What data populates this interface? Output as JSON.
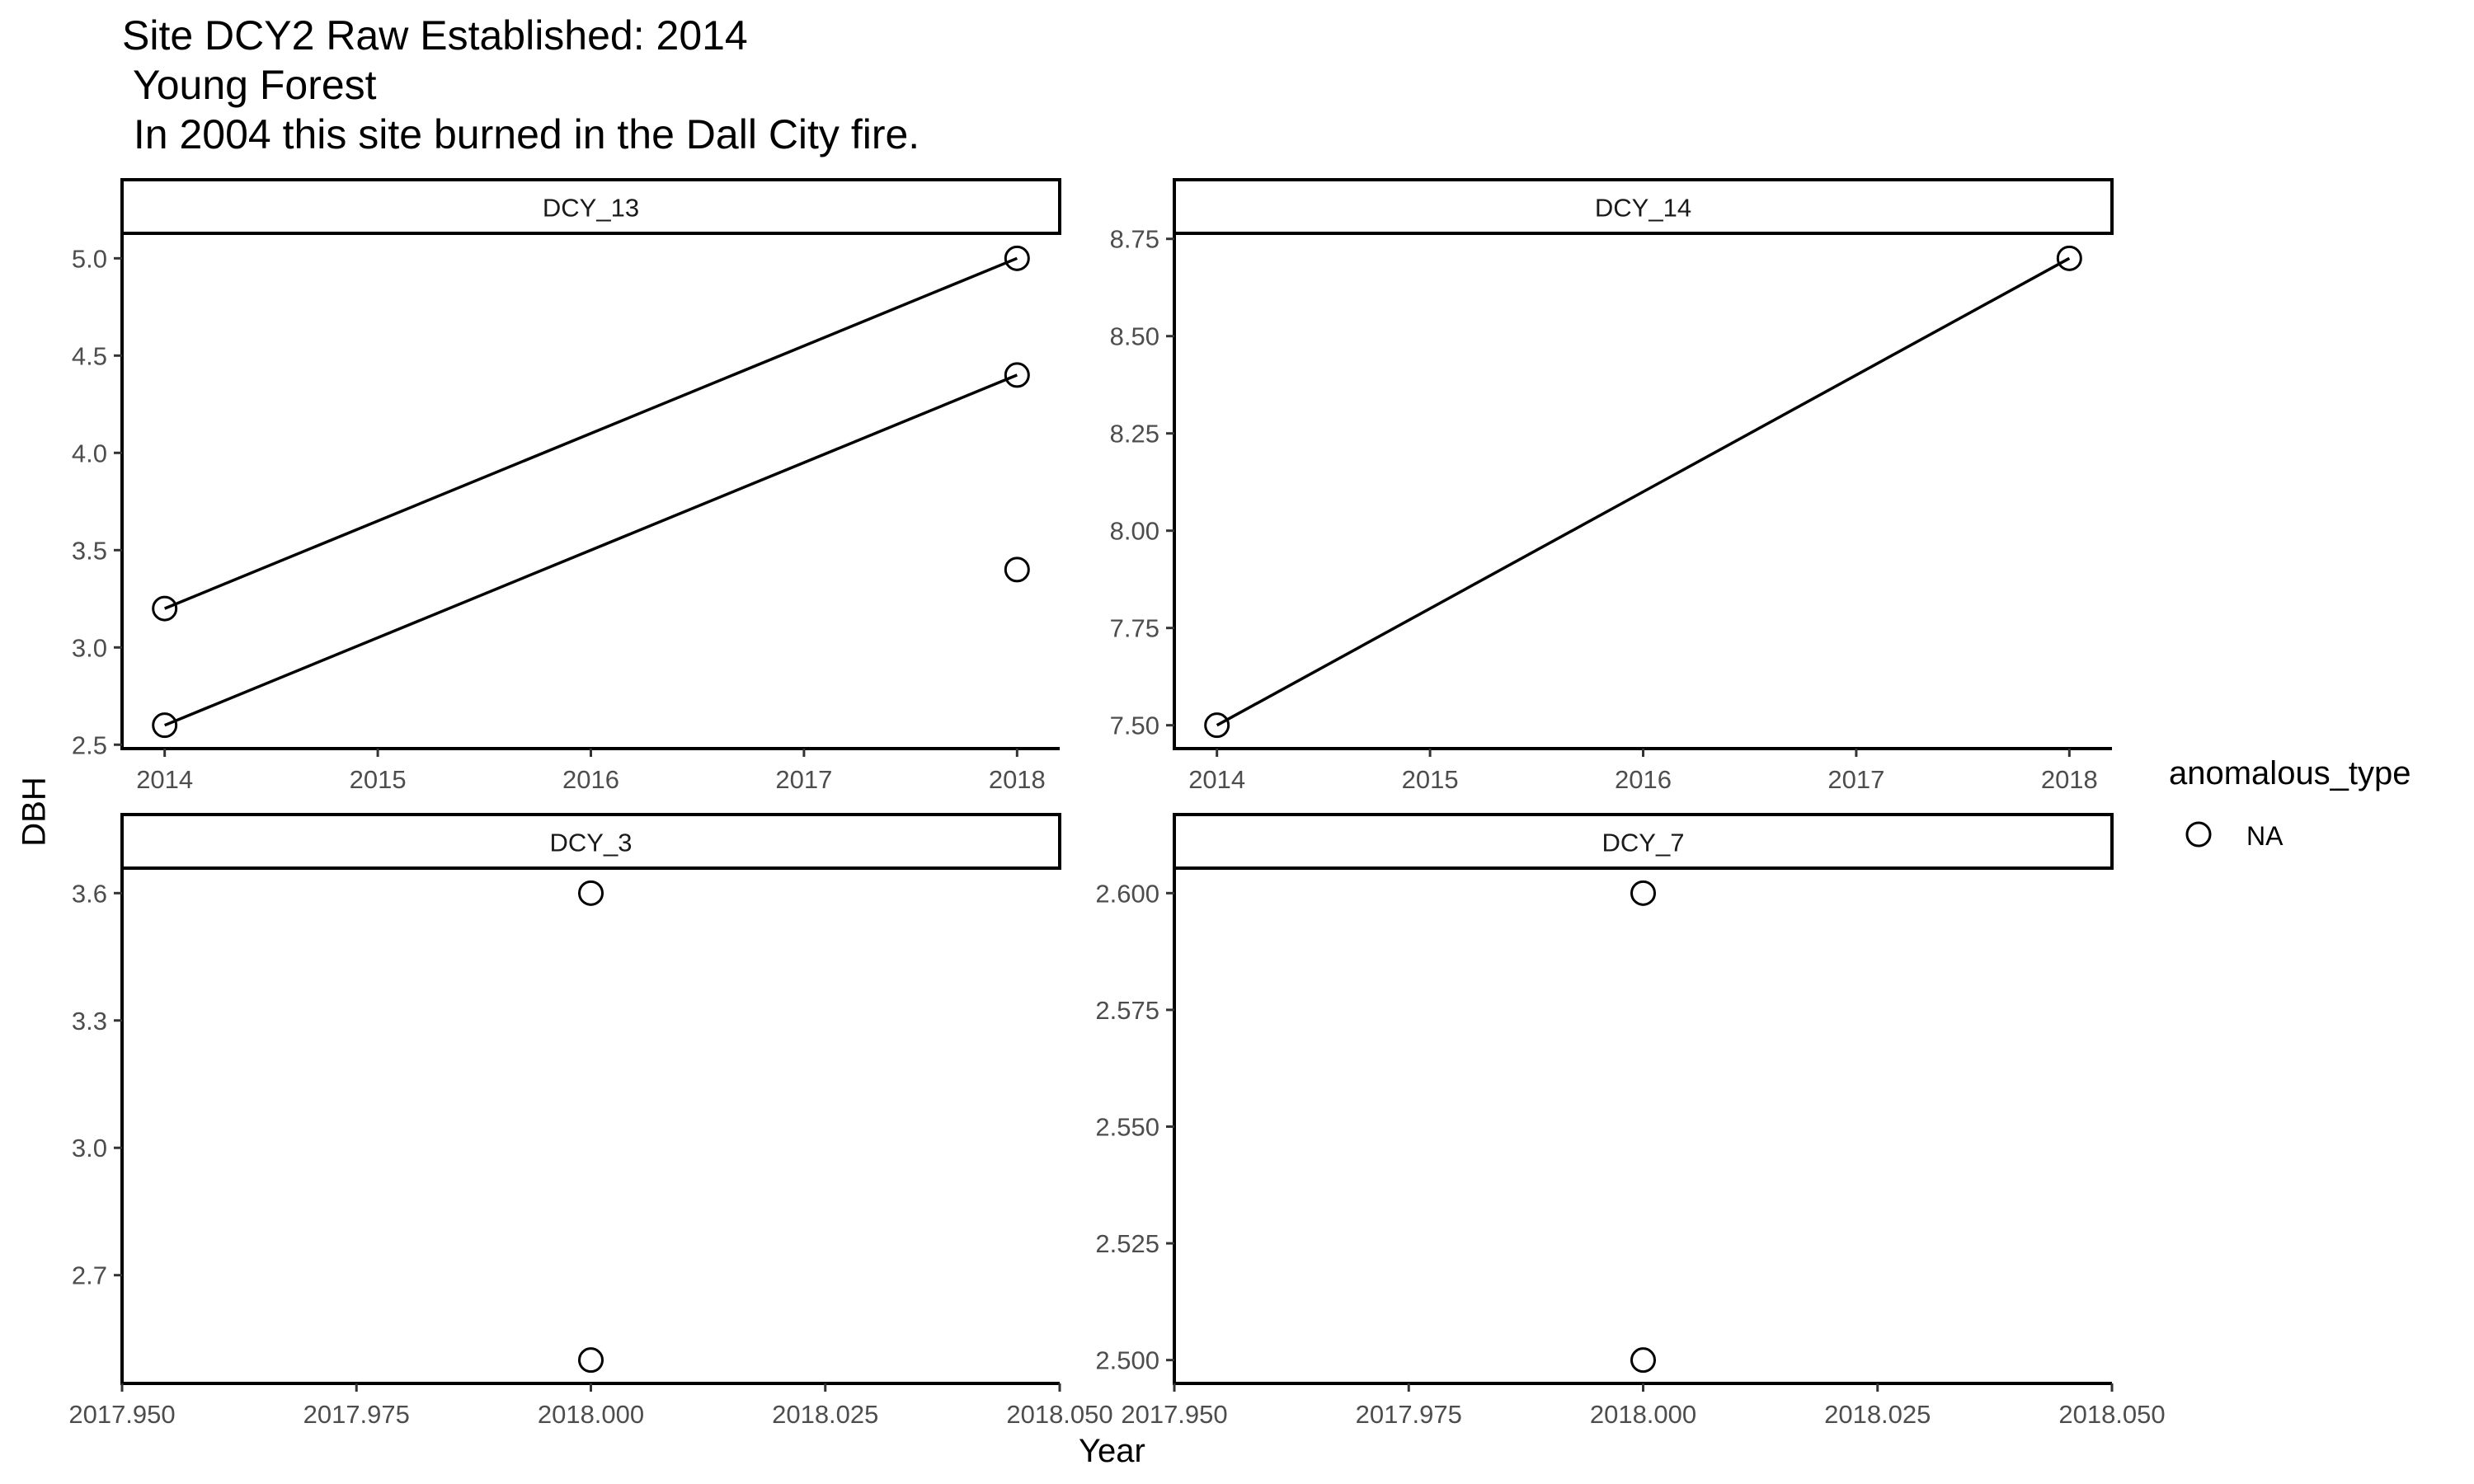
{
  "chart_data": {
    "type": "line",
    "title_lines": [
      "Site DCY2 Raw Established: 2014",
      " Young Forest",
      " In 2004 this site burned in the Dall City fire."
    ],
    "xlabel": "Year",
    "ylabel": "DBH",
    "legend": {
      "title": "anomalous_type",
      "entries": [
        "NA"
      ],
      "placement": "right",
      "marker": "open-circle"
    },
    "grid": false,
    "colors": {
      "marker": "#000000",
      "line": "#000000",
      "strip_fill": "#ffffff"
    },
    "panels": [
      {
        "strip": "DCY_13",
        "xlim": [
          2013.8,
          2018.2
        ],
        "ylim": [
          2.48,
          5.12
        ],
        "x_ticks": [
          2014,
          2015,
          2016,
          2017,
          2018
        ],
        "x_tick_labels": [
          "2014",
          "2015",
          "2016",
          "2017",
          "2018"
        ],
        "y_ticks": [
          2.5,
          3.0,
          3.5,
          4.0,
          4.5,
          5.0
        ],
        "y_tick_labels": [
          "2.5",
          "3.0",
          "3.5",
          "4.0",
          "4.5",
          "5.0"
        ],
        "lines": [
          [
            [
              2014,
              3.2
            ],
            [
              2018,
              5.0
            ]
          ],
          [
            [
              2014,
              2.6
            ],
            [
              2018,
              4.4
            ]
          ]
        ],
        "points": [
          [
            2014,
            3.2
          ],
          [
            2018,
            5.0
          ],
          [
            2014,
            2.6
          ],
          [
            2018,
            4.4
          ],
          [
            2018,
            3.4
          ]
        ]
      },
      {
        "strip": "DCY_14",
        "xlim": [
          2013.8,
          2018.2
        ],
        "ylim": [
          7.44,
          8.76
        ],
        "x_ticks": [
          2014,
          2015,
          2016,
          2017,
          2018
        ],
        "x_tick_labels": [
          "2014",
          "2015",
          "2016",
          "2017",
          "2018"
        ],
        "y_ticks": [
          7.5,
          7.75,
          8.0,
          8.25,
          8.5,
          8.75
        ],
        "y_tick_labels": [
          "7.50",
          "7.75",
          "8.00",
          "8.25",
          "8.50",
          "8.75"
        ],
        "lines": [
          [
            [
              2014,
              7.5
            ],
            [
              2018,
              8.7
            ]
          ]
        ],
        "points": [
          [
            2014,
            7.5
          ],
          [
            2018,
            8.7
          ]
        ]
      },
      {
        "strip": "DCY_3",
        "xlim": [
          2017.95,
          2018.05
        ],
        "ylim": [
          2.445,
          3.655
        ],
        "x_ticks": [
          2017.95,
          2017.975,
          2018.0,
          2018.025,
          2018.05
        ],
        "x_tick_labels": [
          "2017.950",
          "2017.975",
          "2018.000",
          "2018.025",
          "2018.050"
        ],
        "y_ticks": [
          2.7,
          3.0,
          3.3,
          3.6
        ],
        "y_tick_labels": [
          "2.7",
          "3.0",
          "3.3",
          "3.6"
        ],
        "lines": [],
        "points": [
          [
            2018.0,
            3.6
          ],
          [
            2018.0,
            2.5
          ]
        ]
      },
      {
        "strip": "DCY_7",
        "xlim": [
          2017.95,
          2018.05
        ],
        "ylim": [
          2.495,
          2.605
        ],
        "x_ticks": [
          2017.95,
          2017.975,
          2018.0,
          2018.025,
          2018.05
        ],
        "x_tick_labels": [
          "2017.950",
          "2017.975",
          "2018.000",
          "2018.025",
          "2018.050"
        ],
        "y_ticks": [
          2.5,
          2.525,
          2.55,
          2.575,
          2.6
        ],
        "y_tick_labels": [
          "2.500",
          "2.525",
          "2.550",
          "2.575",
          "2.600"
        ],
        "lines": [],
        "points": [
          [
            2018.0,
            2.6
          ],
          [
            2018.0,
            2.5
          ]
        ]
      }
    ]
  }
}
